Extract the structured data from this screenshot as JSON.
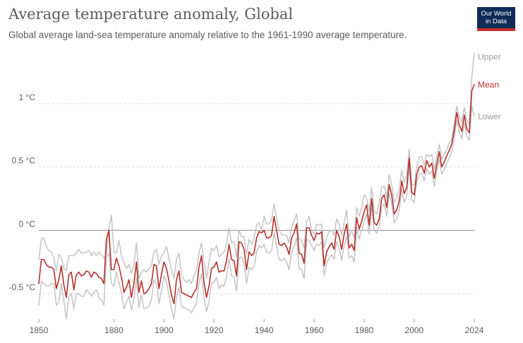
{
  "header": {
    "title": "Average temperature anomaly, Global",
    "subtitle": "Global average land-sea temperature anomaly relative to the 1961-1990 average temperature.",
    "logo_line1": "Our World",
    "logo_line2": "in Data"
  },
  "colors": {
    "mean": "#b5302c",
    "bounds": "#c4c4c4",
    "grid": "#dddddd",
    "zero": "#8c8c8c",
    "text": "#5b5b5b",
    "logo_bg": "#0f2b57"
  },
  "chart_data": {
    "type": "line",
    "title": "Average temperature anomaly, Global",
    "subtitle": "Global average land-sea temperature anomaly relative to the 1961-1990 average temperature.",
    "xlim": [
      1850,
      2024
    ],
    "ylim": [
      -0.7,
      1.4
    ],
    "x_ticks": [
      1850,
      1880,
      1900,
      1920,
      1940,
      1960,
      1980,
      2000,
      2024
    ],
    "y_ticks": [
      {
        "value": -0.5,
        "label": "-0.5 °C"
      },
      {
        "value": 0,
        "label": "0 °C"
      },
      {
        "value": 0.5,
        "label": "0.5 °C"
      },
      {
        "value": 1,
        "label": "1 °C"
      }
    ],
    "grid": true,
    "legend": "end-of-line labels",
    "x": [
      1850,
      1851,
      1852,
      1853,
      1854,
      1855,
      1856,
      1857,
      1858,
      1859,
      1860,
      1861,
      1862,
      1863,
      1864,
      1865,
      1866,
      1867,
      1868,
      1869,
      1870,
      1871,
      1872,
      1873,
      1874,
      1875,
      1876,
      1877,
      1878,
      1879,
      1880,
      1881,
      1882,
      1883,
      1884,
      1885,
      1886,
      1887,
      1888,
      1889,
      1890,
      1891,
      1892,
      1893,
      1894,
      1895,
      1896,
      1897,
      1898,
      1899,
      1900,
      1901,
      1902,
      1903,
      1904,
      1905,
      1906,
      1907,
      1908,
      1909,
      1910,
      1911,
      1912,
      1913,
      1914,
      1915,
      1916,
      1917,
      1918,
      1919,
      1920,
      1921,
      1922,
      1923,
      1924,
      1925,
      1926,
      1927,
      1928,
      1929,
      1930,
      1931,
      1932,
      1933,
      1934,
      1935,
      1936,
      1937,
      1938,
      1939,
      1940,
      1941,
      1942,
      1943,
      1944,
      1945,
      1946,
      1947,
      1948,
      1949,
      1950,
      1951,
      1952,
      1953,
      1954,
      1955,
      1956,
      1957,
      1958,
      1959,
      1960,
      1961,
      1962,
      1963,
      1964,
      1965,
      1966,
      1967,
      1968,
      1969,
      1970,
      1971,
      1972,
      1973,
      1974,
      1975,
      1976,
      1977,
      1978,
      1979,
      1980,
      1981,
      1982,
      1983,
      1984,
      1985,
      1986,
      1987,
      1988,
      1989,
      1990,
      1991,
      1992,
      1993,
      1994,
      1995,
      1996,
      1997,
      1998,
      1999,
      2000,
      2001,
      2002,
      2003,
      2004,
      2005,
      2006,
      2007,
      2008,
      2009,
      2010,
      2011,
      2012,
      2013,
      2014,
      2015,
      2016,
      2017,
      2018,
      2019,
      2020,
      2021,
      2022,
      2023,
      2024
    ],
    "series": [
      {
        "name": "Upper",
        "values": [
          -0.23,
          -0.07,
          -0.06,
          -0.13,
          -0.16,
          -0.17,
          -0.22,
          -0.32,
          -0.19,
          -0.22,
          -0.3,
          -0.32,
          -0.2,
          -0.2,
          -0.2,
          -0.18,
          -0.15,
          -0.18,
          -0.18,
          -0.17,
          -0.16,
          -0.2,
          -0.17,
          -0.2,
          -0.17,
          -0.19,
          -0.22,
          -0.19,
          0.02,
          0.12,
          -0.17,
          -0.18,
          -0.08,
          -0.2,
          -0.26,
          -0.3,
          -0.27,
          -0.34,
          -0.27,
          -0.1,
          -0.38,
          -0.33,
          -0.31,
          -0.33,
          -0.3,
          -0.28,
          -0.17,
          -0.15,
          -0.27,
          -0.2,
          -0.18,
          -0.13,
          -0.22,
          -0.31,
          -0.38,
          -0.23,
          -0.18,
          -0.35,
          -0.39,
          -0.41,
          -0.39,
          -0.42,
          -0.35,
          -0.32,
          -0.18,
          -0.1,
          -0.25,
          -0.38,
          -0.25,
          -0.14,
          -0.16,
          -0.12,
          -0.21,
          -0.19,
          -0.17,
          -0.11,
          0.02,
          -0.1,
          -0.09,
          -0.21,
          0.0,
          -0.05,
          -0.05,
          -0.19,
          -0.07,
          -0.11,
          -0.06,
          0.04,
          0.06,
          0.0,
          0.11,
          0.05,
          0.05,
          0.08,
          0.21,
          0.1,
          0.0,
          -0.03,
          -0.04,
          -0.04,
          -0.1,
          0.03,
          0.07,
          0.13,
          -0.07,
          -0.08,
          -0.14,
          0.07,
          0.11,
          0.0,
          -0.03,
          0.05,
          0.04,
          0.05,
          -0.14,
          -0.06,
          -0.01,
          0.0,
          -0.04,
          0.09,
          0.05,
          -0.04,
          0.06,
          0.16,
          -0.05,
          0.0,
          -0.06,
          0.18,
          0.11,
          0.18,
          0.28,
          0.25,
          0.15,
          0.34,
          0.15,
          0.13,
          0.21,
          0.34,
          0.35,
          0.26,
          0.44,
          0.36,
          0.22,
          0.26,
          0.33,
          0.47,
          0.38,
          0.43,
          0.64,
          0.36,
          0.36,
          0.5,
          0.58,
          0.58,
          0.52,
          0.6,
          0.58,
          0.6,
          0.48,
          0.58,
          0.68,
          0.56,
          0.6,
          0.64,
          0.69,
          0.72,
          0.85,
          0.98,
          0.89,
          0.86,
          0.97,
          0.87,
          0.84,
          1.21,
          1.4
        ]
      },
      {
        "name": "Mean",
        "values": [
          -0.42,
          -0.23,
          -0.23,
          -0.27,
          -0.29,
          -0.29,
          -0.31,
          -0.46,
          -0.39,
          -0.28,
          -0.43,
          -0.53,
          -0.35,
          -0.33,
          -0.47,
          -0.35,
          -0.33,
          -0.36,
          -0.35,
          -0.32,
          -0.33,
          -0.37,
          -0.33,
          -0.34,
          -0.37,
          -0.38,
          -0.42,
          -0.07,
          0.0,
          -0.31,
          -0.31,
          -0.22,
          -0.28,
          -0.37,
          -0.49,
          -0.45,
          -0.39,
          -0.53,
          -0.42,
          -0.25,
          -0.49,
          -0.4,
          -0.5,
          -0.49,
          -0.46,
          -0.42,
          -0.27,
          -0.28,
          -0.46,
          -0.35,
          -0.25,
          -0.3,
          -0.4,
          -0.51,
          -0.58,
          -0.39,
          -0.32,
          -0.49,
          -0.5,
          -0.51,
          -0.52,
          -0.53,
          -0.49,
          -0.46,
          -0.29,
          -0.2,
          -0.41,
          -0.53,
          -0.44,
          -0.3,
          -0.29,
          -0.25,
          -0.33,
          -0.32,
          -0.32,
          -0.24,
          -0.11,
          -0.23,
          -0.24,
          -0.36,
          -0.09,
          -0.1,
          -0.15,
          -0.31,
          -0.17,
          -0.2,
          -0.18,
          -0.06,
          -0.01,
          -0.02,
          0.0,
          -0.06,
          -0.06,
          -0.04,
          0.11,
          0.0,
          -0.11,
          -0.12,
          -0.1,
          -0.13,
          -0.19,
          -0.06,
          -0.02,
          0.05,
          -0.18,
          -0.19,
          -0.26,
          0.02,
          0.02,
          -0.04,
          -0.08,
          -0.02,
          -0.03,
          -0.01,
          -0.28,
          -0.17,
          -0.13,
          -0.1,
          -0.15,
          0.0,
          -0.05,
          -0.15,
          -0.03,
          0.05,
          -0.14,
          -0.11,
          -0.16,
          0.1,
          0.01,
          0.07,
          0.15,
          0.2,
          0.04,
          0.25,
          0.06,
          0.04,
          0.09,
          0.25,
          0.28,
          0.18,
          0.36,
          0.28,
          0.13,
          0.16,
          0.23,
          0.39,
          0.29,
          0.34,
          0.57,
          0.3,
          0.28,
          0.44,
          0.5,
          0.51,
          0.45,
          0.55,
          0.5,
          0.53,
          0.41,
          0.52,
          0.62,
          0.5,
          0.54,
          0.59,
          0.63,
          0.68,
          0.79,
          0.93,
          0.83,
          0.78,
          0.91,
          0.8,
          0.77,
          1.1,
          1.15
        ]
      },
      {
        "name": "Lower",
        "values": [
          -0.59,
          -0.4,
          -0.42,
          -0.44,
          -0.44,
          -0.42,
          -0.42,
          -0.59,
          -0.57,
          -0.42,
          -0.56,
          -0.7,
          -0.52,
          -0.5,
          -0.62,
          -0.5,
          -0.5,
          -0.52,
          -0.52,
          -0.47,
          -0.49,
          -0.52,
          -0.49,
          -0.47,
          -0.53,
          -0.55,
          -0.59,
          -0.22,
          -0.18,
          -0.42,
          -0.44,
          -0.33,
          -0.41,
          -0.49,
          -0.62,
          -0.57,
          -0.52,
          -0.63,
          -0.54,
          -0.38,
          -0.61,
          -0.51,
          -0.62,
          -0.61,
          -0.6,
          -0.55,
          -0.39,
          -0.42,
          -0.58,
          -0.47,
          -0.36,
          -0.41,
          -0.51,
          -0.62,
          -0.7,
          -0.53,
          -0.45,
          -0.6,
          -0.61,
          -0.62,
          -0.63,
          -0.65,
          -0.61,
          -0.58,
          -0.42,
          -0.34,
          -0.53,
          -0.64,
          -0.56,
          -0.42,
          -0.41,
          -0.37,
          -0.46,
          -0.43,
          -0.44,
          -0.37,
          -0.22,
          -0.36,
          -0.37,
          -0.48,
          -0.22,
          -0.21,
          -0.26,
          -0.42,
          -0.29,
          -0.31,
          -0.29,
          -0.17,
          -0.12,
          -0.14,
          -0.11,
          -0.17,
          -0.18,
          -0.16,
          -0.02,
          -0.12,
          -0.23,
          -0.24,
          -0.22,
          -0.25,
          -0.31,
          -0.17,
          -0.13,
          -0.06,
          -0.3,
          -0.31,
          -0.38,
          -0.07,
          -0.08,
          -0.12,
          -0.16,
          -0.11,
          -0.12,
          -0.09,
          -0.36,
          -0.26,
          -0.22,
          -0.19,
          -0.23,
          -0.09,
          -0.14,
          -0.24,
          -0.12,
          -0.05,
          -0.22,
          -0.2,
          -0.25,
          0.02,
          -0.07,
          0.0,
          0.07,
          0.13,
          -0.03,
          0.18,
          0.0,
          -0.02,
          0.03,
          0.18,
          0.21,
          0.11,
          0.29,
          0.21,
          0.06,
          0.09,
          0.16,
          0.32,
          0.22,
          0.27,
          0.5,
          0.24,
          0.22,
          0.38,
          0.44,
          0.45,
          0.39,
          0.49,
          0.44,
          0.47,
          0.35,
          0.46,
          0.56,
          0.44,
          0.48,
          0.53,
          0.57,
          0.62,
          0.73,
          0.87,
          0.77,
          0.72,
          0.85,
          0.74,
          0.71,
          0.98,
          0.9
        ]
      }
    ]
  }
}
